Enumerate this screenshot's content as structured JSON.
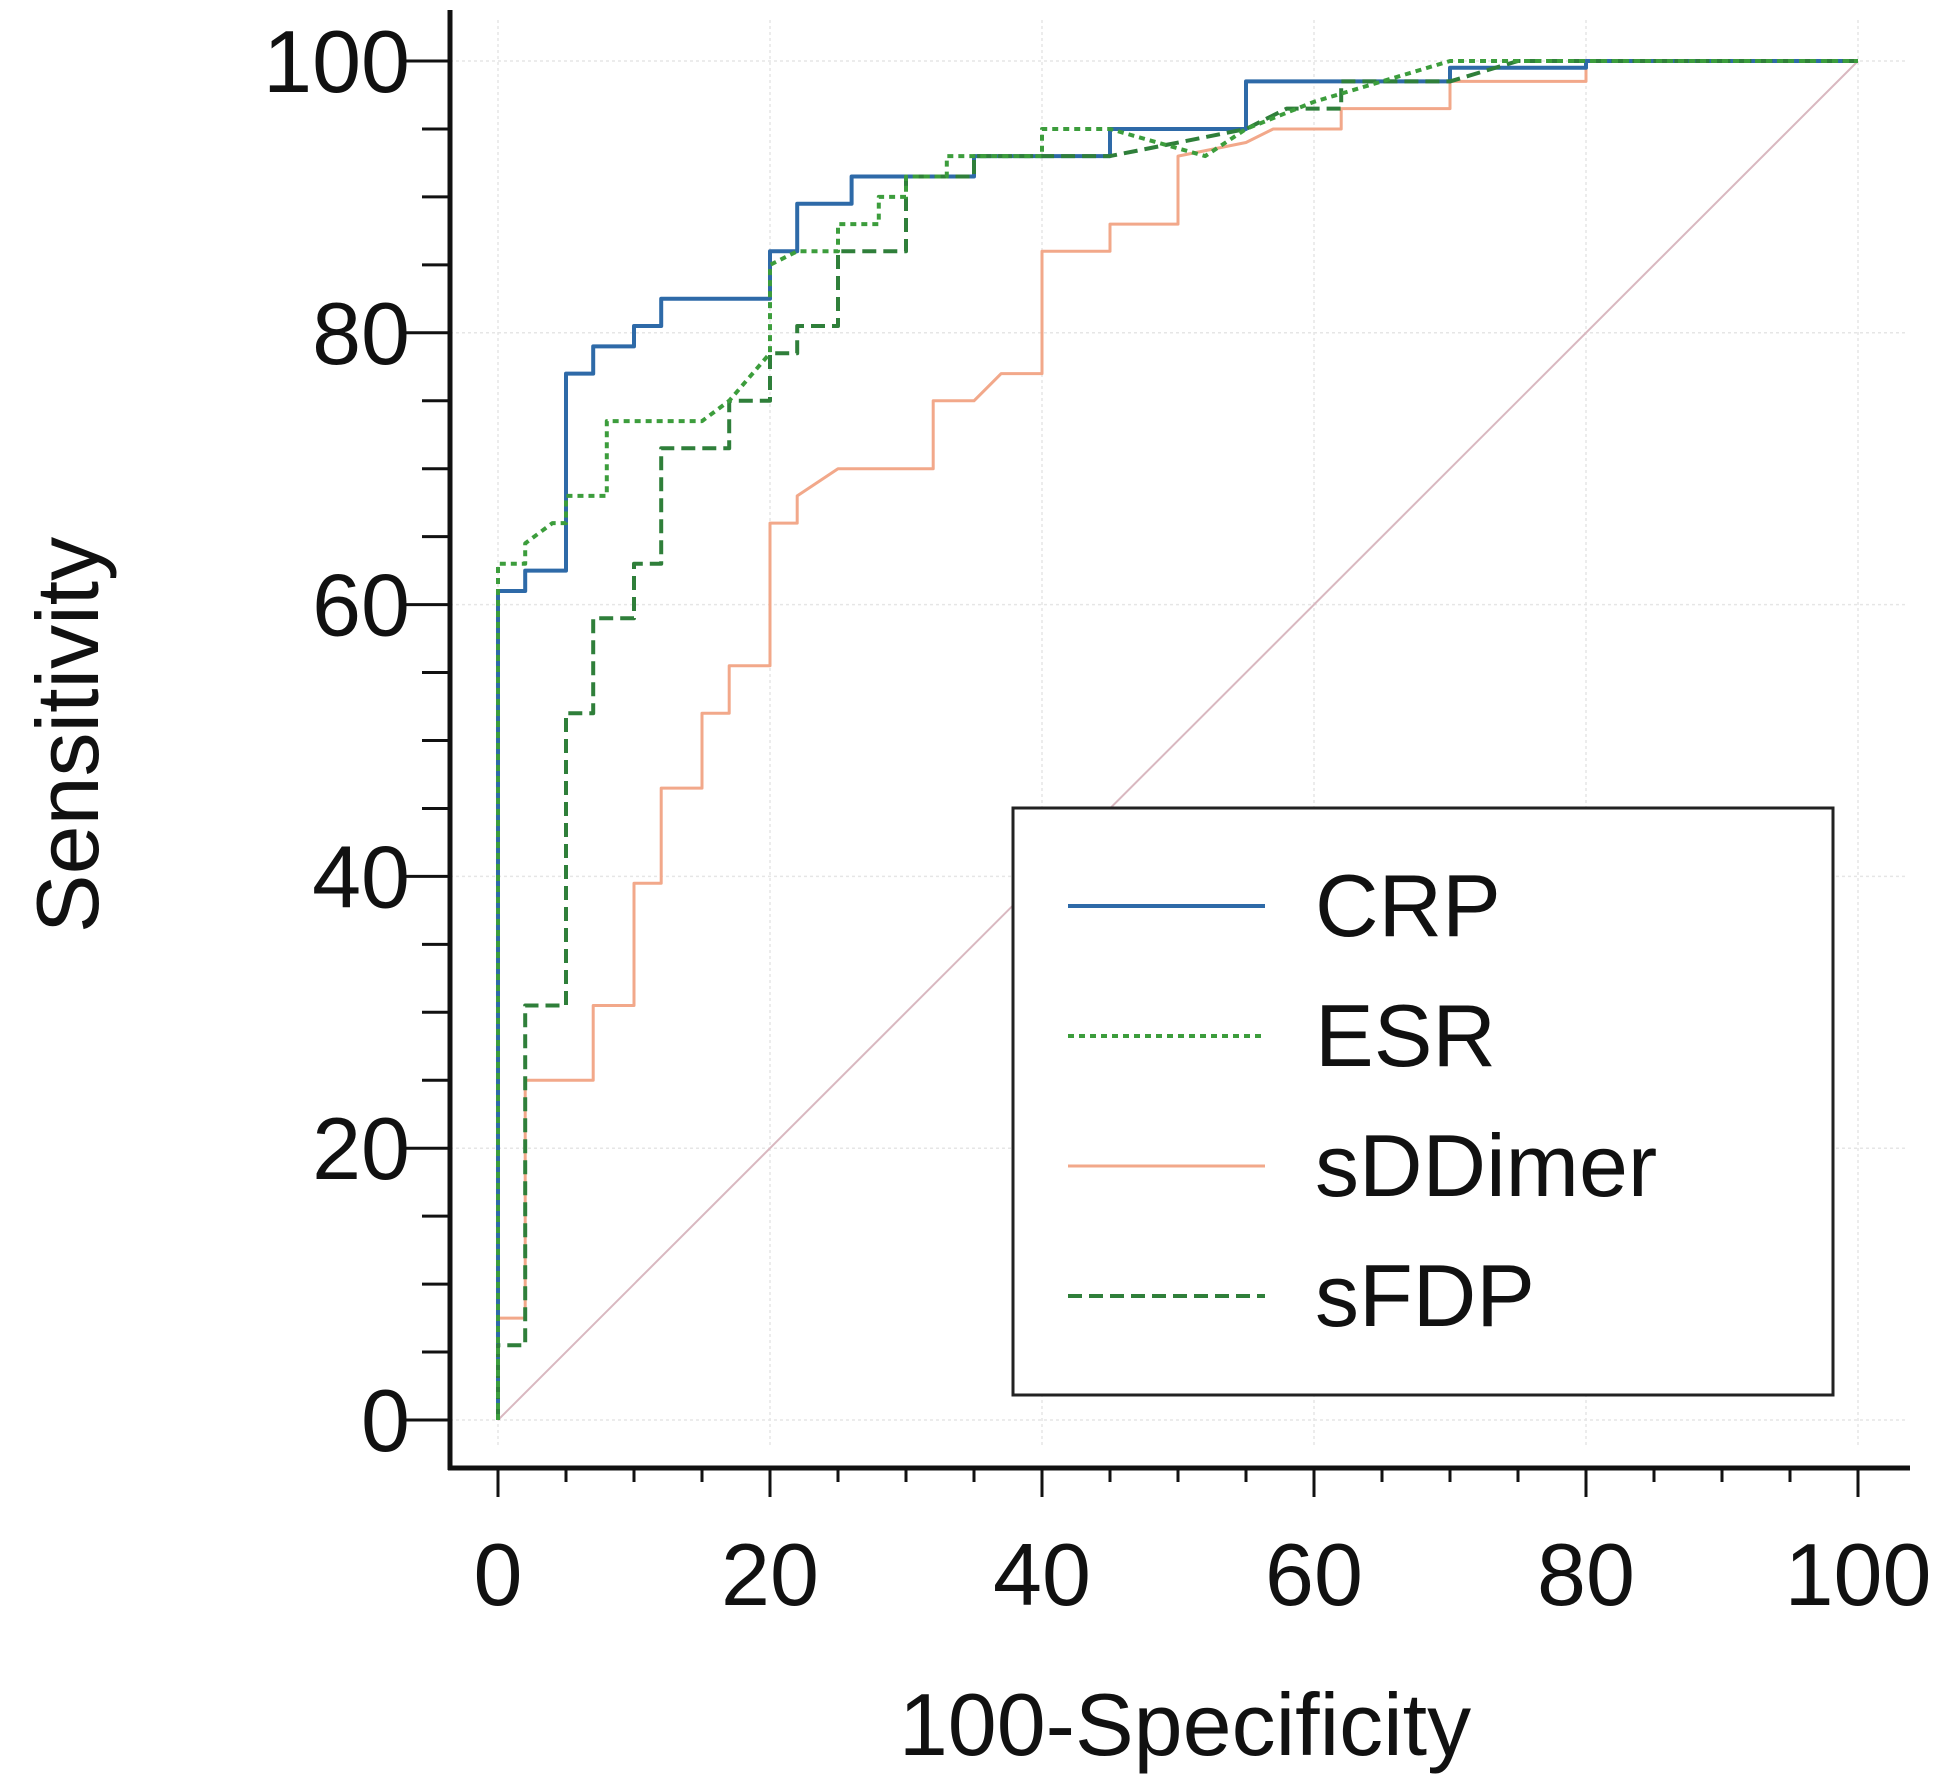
{
  "chart_data": {
    "type": "line",
    "title": "",
    "xlabel": "100-Specificity",
    "ylabel": "Sensitivity",
    "xlim": [
      0,
      100
    ],
    "ylim": [
      0,
      100
    ],
    "xticks": [
      0,
      20,
      40,
      60,
      80,
      100
    ],
    "yticks": [
      0,
      20,
      40,
      60,
      80,
      100
    ],
    "grid": true,
    "legend_position": "bottom-right",
    "reference_line": {
      "name": "reference",
      "points": [
        [
          0,
          0
        ],
        [
          100,
          100
        ]
      ],
      "color": "#d9b8c0"
    },
    "series": [
      {
        "name": "CRP",
        "color": "#2e6aa8",
        "dash": "solid",
        "points": [
          [
            0,
            0
          ],
          [
            0,
            61
          ],
          [
            2,
            61
          ],
          [
            2,
            62.5
          ],
          [
            5,
            62.5
          ],
          [
            5,
            77
          ],
          [
            7,
            77
          ],
          [
            7,
            79
          ],
          [
            10,
            79
          ],
          [
            10,
            80.5
          ],
          [
            12,
            80.5
          ],
          [
            12,
            82.5
          ],
          [
            20,
            82.5
          ],
          [
            20,
            86
          ],
          [
            22,
            86
          ],
          [
            22,
            89.5
          ],
          [
            26,
            89.5
          ],
          [
            26,
            91.5
          ],
          [
            30,
            91.5
          ],
          [
            30,
            91.5
          ],
          [
            35,
            91.5
          ],
          [
            35,
            93
          ],
          [
            45,
            93
          ],
          [
            45,
            95
          ],
          [
            55,
            95
          ],
          [
            55,
            98.5
          ],
          [
            70,
            98.5
          ],
          [
            70,
            99.5
          ],
          [
            80,
            99.5
          ],
          [
            80,
            100
          ],
          [
            100,
            100
          ]
        ]
      },
      {
        "name": "ESR",
        "color": "#3c9d3c",
        "dash": "dotted",
        "points": [
          [
            0,
            0
          ],
          [
            0,
            63
          ],
          [
            2,
            63
          ],
          [
            2,
            64.5
          ],
          [
            4,
            66
          ],
          [
            5,
            66
          ],
          [
            5,
            68
          ],
          [
            8,
            68
          ],
          [
            8,
            73.5
          ],
          [
            15,
            73.5
          ],
          [
            17,
            75
          ],
          [
            20,
            78.5
          ],
          [
            20,
            85
          ],
          [
            22,
            86
          ],
          [
            25,
            86
          ],
          [
            25,
            88
          ],
          [
            28,
            88
          ],
          [
            28,
            90
          ],
          [
            30,
            90
          ],
          [
            30,
            91.5
          ],
          [
            33,
            91.5
          ],
          [
            33,
            93
          ],
          [
            40,
            93
          ],
          [
            40,
            95
          ],
          [
            45,
            95
          ],
          [
            52,
            93
          ],
          [
            55,
            95
          ],
          [
            60,
            97
          ],
          [
            70,
            100
          ],
          [
            100,
            100
          ]
        ]
      },
      {
        "name": "sDDimer",
        "color": "#f2a88a",
        "dash": "solid",
        "points": [
          [
            0,
            0
          ],
          [
            0,
            7.5
          ],
          [
            2,
            7.5
          ],
          [
            2,
            25
          ],
          [
            7,
            25
          ],
          [
            7,
            30.5
          ],
          [
            10,
            30.5
          ],
          [
            10,
            39.5
          ],
          [
            12,
            39.5
          ],
          [
            12,
            46.5
          ],
          [
            15,
            46.5
          ],
          [
            15,
            52
          ],
          [
            17,
            52
          ],
          [
            17,
            55.5
          ],
          [
            20,
            55.5
          ],
          [
            20,
            66
          ],
          [
            22,
            66
          ],
          [
            22,
            68
          ],
          [
            25,
            70
          ],
          [
            30,
            70
          ],
          [
            32,
            70
          ],
          [
            32,
            75
          ],
          [
            35,
            75
          ],
          [
            37,
            77
          ],
          [
            40,
            77
          ],
          [
            40,
            86
          ],
          [
            45,
            86
          ],
          [
            45,
            88
          ],
          [
            50,
            88
          ],
          [
            50,
            93
          ],
          [
            55,
            94
          ],
          [
            57,
            95
          ],
          [
            62,
            95
          ],
          [
            62,
            96.5
          ],
          [
            70,
            96.5
          ],
          [
            70,
            98.5
          ],
          [
            80,
            98.5
          ],
          [
            80,
            100
          ],
          [
            100,
            100
          ]
        ]
      },
      {
        "name": "sFDP",
        "color": "#2f7f3a",
        "dash": "dashed",
        "points": [
          [
            0,
            0
          ],
          [
            0,
            5.5
          ],
          [
            2,
            5.5
          ],
          [
            2,
            30.5
          ],
          [
            5,
            30.5
          ],
          [
            5,
            52
          ],
          [
            7,
            52
          ],
          [
            7,
            59
          ],
          [
            10,
            59
          ],
          [
            10,
            63
          ],
          [
            12,
            63
          ],
          [
            12,
            71.5
          ],
          [
            17,
            71.5
          ],
          [
            17,
            75
          ],
          [
            20,
            75
          ],
          [
            20,
            78.5
          ],
          [
            22,
            78.5
          ],
          [
            22,
            80.5
          ],
          [
            25,
            80.5
          ],
          [
            25,
            86
          ],
          [
            30,
            86
          ],
          [
            30,
            91.5
          ],
          [
            35,
            91.5
          ],
          [
            35,
            93
          ],
          [
            40,
            93
          ],
          [
            45,
            93
          ],
          [
            55,
            95
          ],
          [
            58,
            96.5
          ],
          [
            62,
            96.5
          ],
          [
            62,
            98.5
          ],
          [
            70,
            98.5
          ],
          [
            75,
            100
          ],
          [
            100,
            100
          ]
        ]
      }
    ]
  }
}
